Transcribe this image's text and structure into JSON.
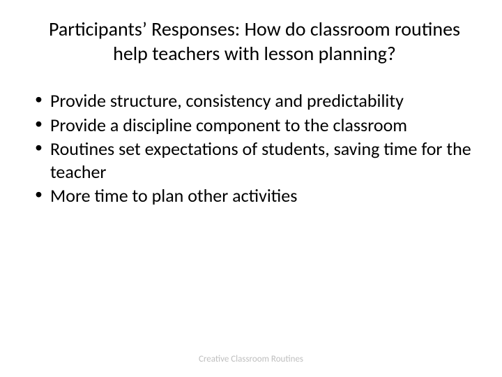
{
  "slide": {
    "title": "Participants’ Responses: How do classroom routines help teachers with lesson planning?",
    "bullets": [
      "Provide structure, consistency and predictability",
      "Provide a discipline component to the classroom",
      "Routines set expectations of students, saving time for the teacher",
      "More time to plan other activities"
    ],
    "footer": "Creative Classroom Routines"
  },
  "styling": {
    "background_color": "#ffffff",
    "text_color": "#000000",
    "footer_color": "#bfbfbf",
    "title_fontsize": 28,
    "bullet_fontsize": 26,
    "footer_fontsize": 13,
    "font_family": "Calibri"
  }
}
